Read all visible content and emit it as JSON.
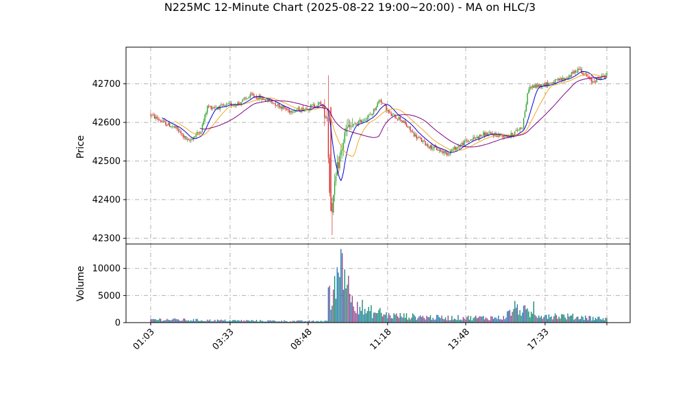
{
  "chart_data": {
    "type": "candlestick",
    "title": "N225MC 12-Minute Chart (2025-08-22 19:00~20:00) - MA on HLC/3",
    "price_panel": {
      "ylabel": "Price",
      "ylim": [
        42285,
        42795
      ],
      "yticks": [
        42300,
        42400,
        42500,
        42600,
        42700
      ],
      "grid": true
    },
    "volume_panel": {
      "ylabel": "Volume",
      "ylim": [
        0,
        14500
      ],
      "yticks": [
        0,
        5000,
        10000
      ],
      "grid": true
    },
    "x_tick_labels": [
      "01:03",
      "03:33",
      "08:48",
      "11:18",
      "13:48",
      "17:33"
    ],
    "colors": {
      "up": "#2ca02c",
      "down": "#d62728",
      "ma_short": "#0000cd",
      "ma_mid": "#f5a623",
      "ma_long": "#800080",
      "vol_up": "#1f77b4",
      "vol_down": "#8b4789",
      "vol_teal": "#138a72"
    },
    "price_anchors": [
      [
        0,
        42620
      ],
      [
        10,
        42600
      ],
      [
        20,
        42585
      ],
      [
        30,
        42550
      ],
      [
        40,
        42580
      ],
      [
        45,
        42640
      ],
      [
        55,
        42640
      ],
      [
        70,
        42650
      ],
      [
        80,
        42670
      ],
      [
        95,
        42655
      ],
      [
        110,
        42630
      ],
      [
        122,
        42635
      ],
      [
        135,
        42650
      ],
      [
        140,
        42615
      ],
      [
        142,
        42420
      ],
      [
        144,
        42380
      ],
      [
        148,
        42480
      ],
      [
        155,
        42580
      ],
      [
        165,
        42600
      ],
      [
        175,
        42620
      ],
      [
        182,
        42660
      ],
      [
        190,
        42620
      ],
      [
        198,
        42610
      ],
      [
        210,
        42565
      ],
      [
        220,
        42540
      ],
      [
        235,
        42520
      ],
      [
        250,
        42550
      ],
      [
        265,
        42570
      ],
      [
        285,
        42565
      ],
      [
        295,
        42590
      ],
      [
        300,
        42690
      ],
      [
        315,
        42700
      ],
      [
        330,
        42715
      ],
      [
        340,
        42740
      ],
      [
        350,
        42705
      ],
      [
        362,
        42725
      ]
    ],
    "volume_anchors": [
      [
        0,
        600
      ],
      [
        50,
        400
      ],
      [
        130,
        250
      ],
      [
        140,
        300
      ],
      [
        141,
        6300
      ],
      [
        143,
        2800
      ],
      [
        148,
        10200
      ],
      [
        152,
        12700
      ],
      [
        158,
        5000
      ],
      [
        170,
        2000
      ],
      [
        190,
        1300
      ],
      [
        230,
        900
      ],
      [
        280,
        900
      ],
      [
        290,
        2800
      ],
      [
        300,
        1600
      ],
      [
        340,
        1000
      ],
      [
        362,
        700
      ]
    ],
    "volume_spikes": [
      [
        141,
        6500
      ],
      [
        146,
        8600
      ],
      [
        148,
        10200
      ],
      [
        150,
        8400
      ],
      [
        152,
        12800
      ],
      [
        154,
        9800
      ],
      [
        156,
        7000
      ],
      [
        160,
        4900
      ],
      [
        168,
        4200
      ],
      [
        175,
        3200
      ],
      [
        182,
        2700
      ],
      [
        288,
        2500
      ],
      [
        297,
        3200
      ],
      [
        304,
        3900
      ],
      [
        345,
        1300
      ]
    ],
    "n_bars": 363
  }
}
